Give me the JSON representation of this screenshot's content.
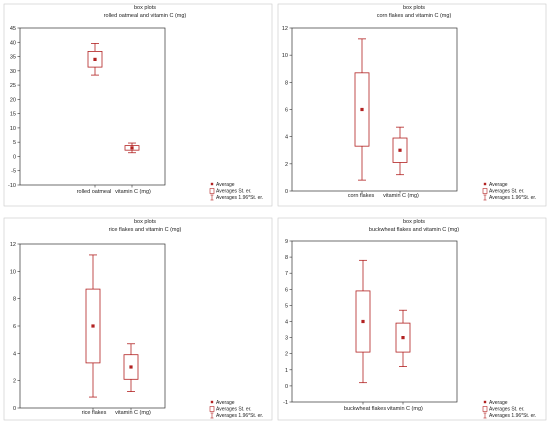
{
  "colors": {
    "box": "#b22222",
    "axis": "#333333",
    "frame": "#c8c8c8"
  },
  "chart_data": [
    {
      "type": "box",
      "title": "box plots",
      "subtitle": "rolled oatmeal  and vitamin C (mg)",
      "categories": [
        "rolled oatmeal",
        "vitamin C (mg)"
      ],
      "boxes": [
        {
          "name": "rolled oatmeal",
          "mean": 34,
          "se_low": 31.3,
          "se_high": 36.8,
          "ci_low": 28.5,
          "ci_high": 39.6
        },
        {
          "name": "vitamin C (mg)",
          "mean": 3,
          "se_low": 2.2,
          "se_high": 3.8,
          "ci_low": 1.3,
          "ci_high": 4.7
        }
      ],
      "ylim": [
        -10,
        45
      ],
      "yticks": [
        "45",
        "40",
        "35",
        "30",
        "25",
        "20",
        "15",
        "10",
        "5",
        "0",
        "-5",
        "-10"
      ],
      "legend": [
        "Average",
        "Averages St. er.",
        "Averages 1.96*St. er."
      ]
    },
    {
      "type": "box",
      "title": "box plots",
      "subtitle": "corn flakes  and vitamin C (mg)",
      "categories": [
        "corn flakes",
        "vitamin C (mg)"
      ],
      "boxes": [
        {
          "name": "corn flakes",
          "mean": 6,
          "se_low": 3.3,
          "se_high": 8.7,
          "ci_low": 0.8,
          "ci_high": 11.2
        },
        {
          "name": "vitamin C (mg)",
          "mean": 3,
          "se_low": 2.1,
          "se_high": 3.9,
          "ci_low": 1.2,
          "ci_high": 4.7
        }
      ],
      "ylim": [
        0,
        12
      ],
      "yticks": [
        "12",
        "10",
        "8",
        "6",
        "4",
        "2",
        "0"
      ],
      "legend": [
        "Average",
        "Averages St. er.",
        "Averages 1.96*St. er."
      ]
    },
    {
      "type": "box",
      "title": "box plots",
      "subtitle": "rice flakes and vitamin C (mg)",
      "categories": [
        "rice flakes",
        "vitamin C (mg)"
      ],
      "boxes": [
        {
          "name": "rice flakes",
          "mean": 6,
          "se_low": 3.3,
          "se_high": 8.7,
          "ci_low": 0.8,
          "ci_high": 11.2
        },
        {
          "name": "vitamin C (mg)",
          "mean": 3,
          "se_low": 2.1,
          "se_high": 3.9,
          "ci_low": 1.2,
          "ci_high": 4.7
        }
      ],
      "ylim": [
        0,
        12
      ],
      "yticks": [
        "12",
        "10",
        "8",
        "6",
        "4",
        "2",
        "0"
      ],
      "legend": [
        "Average",
        "Averages St. er.",
        "Averages 1.96*St. er."
      ]
    },
    {
      "type": "box",
      "title": "box plots",
      "subtitle": "buckwheat flakes and vitamin C (mg)",
      "categories": [
        "buckwheat flakes",
        "vitamin C (mg)"
      ],
      "boxes": [
        {
          "name": "buckwheat flakes",
          "mean": 4,
          "se_low": 2.1,
          "se_high": 5.9,
          "ci_low": 0.2,
          "ci_high": 7.8
        },
        {
          "name": "vitamin C (mg)",
          "mean": 3,
          "se_low": 2.1,
          "se_high": 3.9,
          "ci_low": 1.2,
          "ci_high": 4.7
        }
      ],
      "ylim": [
        -1,
        9
      ],
      "yticks": [
        "9",
        "8",
        "7",
        "6",
        "5",
        "4",
        "3",
        "2",
        "1",
        "0",
        "-1"
      ],
      "legend": [
        "Average",
        "Averages St. er.",
        "Averages 1.96*St. er."
      ]
    }
  ]
}
